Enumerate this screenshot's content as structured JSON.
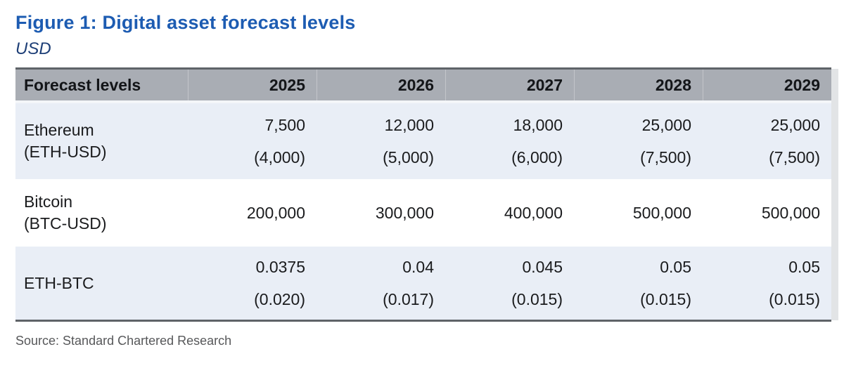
{
  "figure": {
    "title": "Figure 1: Digital asset forecast levels",
    "subtitle": "USD",
    "source": "Source: Standard Chartered Research"
  },
  "colors": {
    "title_blue": "#1d5cb2",
    "subtitle_navy": "#1e3f77",
    "header_bg": "#a9adb4",
    "alt_row_bg": "#e9eef6",
    "white_row_bg": "#ffffff",
    "table_border": "#5f6368",
    "source_gray": "#57585a"
  },
  "chart_data": {
    "type": "table",
    "title": "Figure 1: Digital asset forecast levels",
    "subtitle": "USD",
    "columns": [
      "Forecast levels",
      "2025",
      "2026",
      "2027",
      "2028",
      "2029"
    ],
    "rows": [
      {
        "label_lines": [
          "Ethereum",
          "(ETH-USD)"
        ],
        "primary": [
          "7,500",
          "12,000",
          "18,000",
          "25,000",
          "25,000"
        ],
        "secondary": [
          "(4,000)",
          "(5,000)",
          "(6,000)",
          "(7,500)",
          "(7,500)"
        ]
      },
      {
        "label_lines": [
          "Bitcoin",
          "(BTC-USD)"
        ],
        "primary": [
          "200,000",
          "300,000",
          "400,000",
          "500,000",
          "500,000"
        ]
      },
      {
        "label_lines": [
          "ETH-BTC"
        ],
        "primary": [
          "0.0375",
          "0.04",
          "0.045",
          "0.05",
          "0.05"
        ],
        "secondary": [
          "(0.020)",
          "(0.017)",
          "(0.015)",
          "(0.015)",
          "(0.015)"
        ]
      }
    ],
    "source": "Source: Standard Chartered Research",
    "layout": {
      "header_alignment": "right",
      "value_alignment": "right",
      "grid": "off",
      "secondary_values_in_parentheses": true
    }
  }
}
